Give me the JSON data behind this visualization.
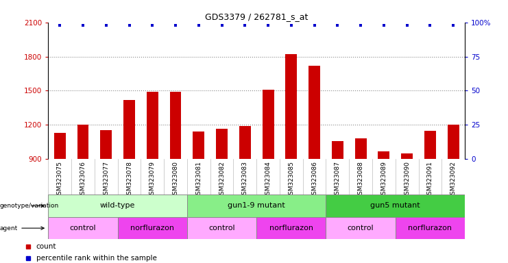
{
  "title": "GDS3379 / 262781_s_at",
  "samples": [
    "GSM323075",
    "GSM323076",
    "GSM323077",
    "GSM323078",
    "GSM323079",
    "GSM323080",
    "GSM323081",
    "GSM323082",
    "GSM323083",
    "GSM323084",
    "GSM323085",
    "GSM323086",
    "GSM323087",
    "GSM323088",
    "GSM323089",
    "GSM323090",
    "GSM323091",
    "GSM323092"
  ],
  "counts": [
    1130,
    1200,
    1155,
    1420,
    1490,
    1490,
    1140,
    1165,
    1190,
    1510,
    1820,
    1720,
    1060,
    1080,
    970,
    950,
    1150,
    1200
  ],
  "percentile_ranks": [
    98,
    98,
    98,
    98,
    98,
    98,
    98,
    98,
    98,
    98,
    98,
    98,
    98,
    98,
    98,
    98,
    98,
    98
  ],
  "bar_color": "#cc0000",
  "dot_color": "#0000cc",
  "ylim_left": [
    900,
    2100
  ],
  "ylim_right": [
    0,
    100
  ],
  "yticks_left": [
    900,
    1200,
    1500,
    1800,
    2100
  ],
  "yticks_right": [
    0,
    25,
    50,
    75,
    100
  ],
  "ytick_labels_right": [
    "0",
    "25",
    "50",
    "75",
    "100%"
  ],
  "genotype_groups": [
    {
      "label": "wild-type",
      "start": 0,
      "end": 5,
      "color": "#ccffcc"
    },
    {
      "label": "gun1-9 mutant",
      "start": 6,
      "end": 11,
      "color": "#88ee88"
    },
    {
      "label": "gun5 mutant",
      "start": 12,
      "end": 17,
      "color": "#44cc44"
    }
  ],
  "agent_groups": [
    {
      "label": "control",
      "start": 0,
      "end": 2,
      "color": "#ffaaff"
    },
    {
      "label": "norflurazon",
      "start": 3,
      "end": 5,
      "color": "#ee44ee"
    },
    {
      "label": "control",
      "start": 6,
      "end": 8,
      "color": "#ffaaff"
    },
    {
      "label": "norflurazon",
      "start": 9,
      "end": 11,
      "color": "#ee44ee"
    },
    {
      "label": "control",
      "start": 12,
      "end": 14,
      "color": "#ffaaff"
    },
    {
      "label": "norflurazon",
      "start": 15,
      "end": 17,
      "color": "#ee44ee"
    }
  ],
  "legend_count_color": "#cc0000",
  "legend_dot_color": "#0000cc",
  "grid_color": "#888888",
  "background_color": "#ffffff",
  "tick_label_color_left": "#cc0000",
  "tick_label_color_right": "#0000cc",
  "xaxis_bg": "#dddddd"
}
